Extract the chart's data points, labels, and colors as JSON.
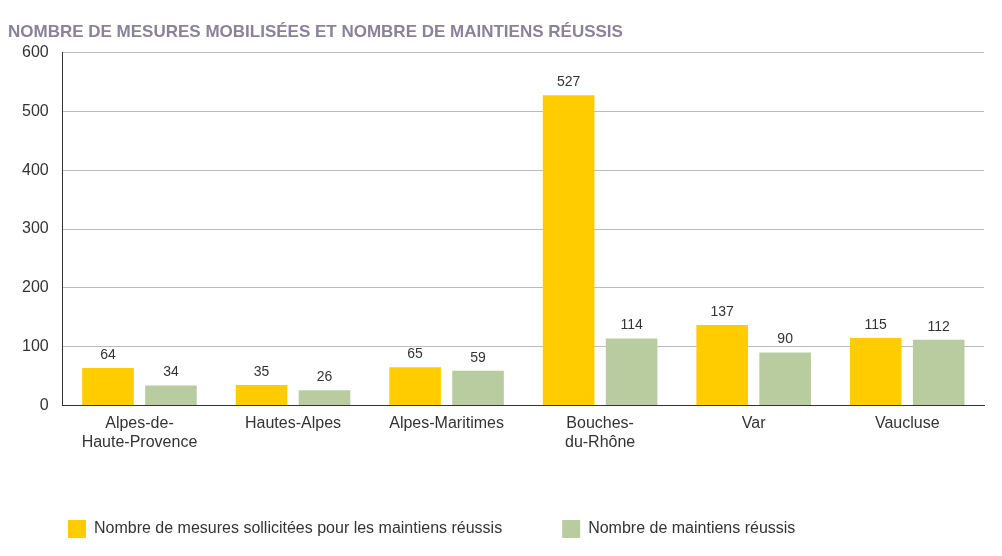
{
  "chart_data": {
    "type": "bar",
    "title": "NOMBRE DE MESURES MOBILISÉES ET NOMBRE DE MAINTIENS RÉUSSIS",
    "categories": [
      "Alpes-de-\nHaute-Provence",
      "Hautes-Alpes",
      "Alpes-Maritimes",
      "Bouches-\ndu-Rhône",
      "Var",
      "Vaucluse"
    ],
    "series": [
      {
        "name": "Nombre de mesures sollicitées pour les maintiens réussis",
        "color": "#ffcc00",
        "values": [
          64,
          35,
          65,
          527,
          137,
          115
        ]
      },
      {
        "name": "Nombre de maintiens réussis",
        "color": "#b8cca0",
        "values": [
          34,
          26,
          59,
          114,
          90,
          112
        ]
      }
    ],
    "ylim": [
      0,
      600
    ],
    "yticks": [
      0,
      100,
      200,
      300,
      400,
      500,
      600
    ],
    "grid": "y",
    "legend": "bottom left",
    "data_labels": true
  }
}
